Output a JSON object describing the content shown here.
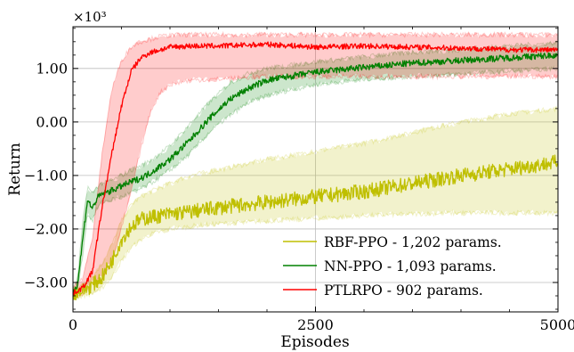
{
  "chart_data": {
    "type": "line",
    "xlabel": "Episodes",
    "ylabel": "Return",
    "y_multiplier_label": "×10³",
    "xlim": [
      0,
      5000
    ],
    "ylim": [
      -3.55,
      1.78
    ],
    "x_ticks": [
      0,
      2500,
      5000
    ],
    "x_tick_labels": [
      "0",
      "2500",
      "5000"
    ],
    "y_ticks": [
      -3,
      -2,
      -1,
      0,
      1
    ],
    "y_tick_labels": [
      "−3.00",
      "−2.00",
      "−1.00",
      "0.00",
      "1.00"
    ],
    "grid": true,
    "legend_position": "bottom-right",
    "series": [
      {
        "name": "RBF-PPO - 1,202 params.",
        "color": "#bfbf00",
        "x": [
          0,
          100,
          200,
          300,
          400,
          500,
          600,
          700,
          800,
          1000,
          1200,
          1500,
          2000,
          2500,
          3000,
          3500,
          4000,
          4500,
          5000
        ],
        "mean": [
          -3.2,
          -3.15,
          -3.05,
          -2.9,
          -2.6,
          -2.2,
          -1.95,
          -1.82,
          -1.78,
          -1.72,
          -1.68,
          -1.6,
          -1.5,
          -1.4,
          -1.3,
          -1.15,
          -1.0,
          -0.88,
          -0.75
        ],
        "lower": [
          -3.3,
          -3.25,
          -3.2,
          -3.1,
          -2.9,
          -2.6,
          -2.35,
          -2.2,
          -2.1,
          -2.0,
          -1.95,
          -1.9,
          -1.85,
          -1.8,
          -1.75,
          -1.72,
          -1.7,
          -1.7,
          -1.7
        ],
        "upper": [
          -3.1,
          -3.05,
          -2.9,
          -2.65,
          -2.3,
          -1.85,
          -1.55,
          -1.4,
          -1.3,
          -1.15,
          -1.0,
          -0.9,
          -0.7,
          -0.55,
          -0.4,
          -0.2,
          0.0,
          0.15,
          0.25
        ]
      },
      {
        "name": "NN-PPO - 1,093 params.",
        "color": "#008000",
        "x": [
          0,
          50,
          100,
          150,
          200,
          250,
          300,
          400,
          500,
          600,
          700,
          800,
          1000,
          1200,
          1400,
          1600,
          1800,
          2000,
          2500,
          3000,
          3500,
          4000,
          4500,
          5000
        ],
        "mean": [
          -3.2,
          -3.0,
          -2.2,
          -1.45,
          -1.62,
          -1.42,
          -1.35,
          -1.28,
          -1.2,
          -1.12,
          -1.05,
          -0.95,
          -0.7,
          -0.35,
          0.05,
          0.4,
          0.62,
          0.78,
          0.93,
          1.02,
          1.1,
          1.15,
          1.2,
          1.25
        ],
        "lower": [
          -3.25,
          -3.1,
          -2.5,
          -1.7,
          -1.85,
          -1.6,
          -1.5,
          -1.45,
          -1.4,
          -1.32,
          -1.25,
          -1.15,
          -0.9,
          -0.6,
          -0.2,
          0.1,
          0.35,
          0.5,
          0.7,
          0.8,
          0.85,
          0.9,
          0.95,
          1.0
        ],
        "upper": [
          -3.15,
          -2.9,
          -1.9,
          -1.2,
          -1.35,
          -1.2,
          -1.15,
          -1.1,
          -1.0,
          -0.9,
          -0.82,
          -0.72,
          -0.45,
          -0.05,
          0.35,
          0.7,
          0.9,
          1.0,
          1.12,
          1.22,
          1.3,
          1.35,
          1.42,
          1.48
        ]
      },
      {
        "name": "PTLRPO - 902 params.",
        "color": "#ff0000",
        "x": [
          0,
          100,
          200,
          300,
          400,
          500,
          600,
          700,
          800,
          900,
          1000,
          1200,
          1500,
          2000,
          2500,
          3000,
          3500,
          4000,
          4500,
          5000
        ],
        "mean": [
          -3.2,
          -3.1,
          -2.8,
          -1.6,
          -0.6,
          0.3,
          0.95,
          1.2,
          1.3,
          1.35,
          1.4,
          1.42,
          1.42,
          1.45,
          1.4,
          1.42,
          1.4,
          1.38,
          1.35,
          1.35
        ],
        "lower": [
          -3.3,
          -3.2,
          -3.0,
          -2.9,
          -2.6,
          -2.0,
          -1.3,
          -0.5,
          0.2,
          0.55,
          0.7,
          0.78,
          0.8,
          0.85,
          0.85,
          0.85,
          0.85,
          0.85,
          0.85,
          0.85
        ],
        "upper": [
          -3.1,
          -2.9,
          -2.2,
          -0.6,
          0.6,
          1.15,
          1.4,
          1.5,
          1.55,
          1.6,
          1.62,
          1.63,
          1.63,
          1.63,
          1.63,
          1.63,
          1.63,
          1.63,
          1.63,
          1.63
        ]
      }
    ]
  }
}
